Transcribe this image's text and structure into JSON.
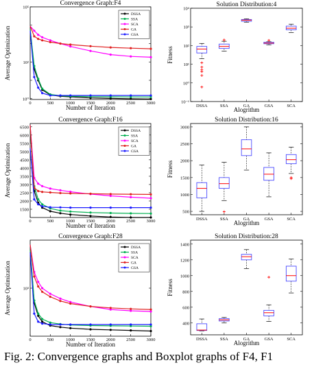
{
  "caption": "Fig. 2: Convergence graphs and Boxplot graphs of F4, F1",
  "legend_labels": [
    "DSSA",
    "SSA",
    "SCA",
    "GA",
    "GSA"
  ],
  "series_colors": {
    "DSSA": "#000000",
    "SSA": "#00b050",
    "SCA": "#ff00ff",
    "GA": "#e02020",
    "GSA": "#1a1aff"
  },
  "box_color": "#4a4aff",
  "median_color": "#ff0000",
  "outlier_color": "#ff0000",
  "chart_data": [
    {
      "type": "line",
      "title": "Convergence Graph:F4",
      "xlabel": "Number of Iteration",
      "ylabel": "Average Optimization",
      "yscale": "log",
      "xlim": [
        0,
        3000
      ],
      "ylim": [
        0.9,
        100000
      ],
      "x_ticks": [
        0,
        500,
        1000,
        1500,
        2000,
        2500,
        3000
      ],
      "y_ticks": [
        1,
        10,
        100,
        1000,
        10000,
        100000
      ],
      "y_tick_labels": [
        "10⁰",
        "",
        "10²",
        "",
        "",
        "10⁵"
      ],
      "x": [
        0,
        100,
        200,
        300,
        500,
        750,
        1000,
        1500,
        2000,
        2500,
        3000
      ],
      "series": [
        {
          "name": "DSSA",
          "values": [
            6000,
            40,
            10,
            3,
            1.6,
            1.35,
            1.25,
            1.1,
            1.03,
            0.98,
            0.95
          ]
        },
        {
          "name": "SSA",
          "values": [
            6000,
            60,
            12,
            3.5,
            1.7,
            1.45,
            1.35,
            1.3,
            1.27,
            1.25,
            1.24
          ]
        },
        {
          "name": "SCA",
          "values": [
            9000,
            5000,
            3000,
            2200,
            1500,
            1000,
            700,
            400,
            250,
            200,
            180
          ]
        },
        {
          "name": "GA",
          "values": [
            9000,
            2500,
            1800,
            1500,
            1200,
            1000,
            880,
            720,
            620,
            560,
            520
          ]
        },
        {
          "name": "GSA",
          "values": [
            5000,
            15,
            4,
            2,
            1.5,
            1.5,
            1.5,
            1.5,
            1.5,
            1.5,
            1.5
          ]
        }
      ]
    },
    {
      "type": "box",
      "title": "Solution Distribution:4",
      "xlabel": "Alogrithm",
      "ylabel": "Fitness",
      "yscale": "log",
      "ylim": [
        0.1,
        10000
      ],
      "y_ticks": [
        0.1,
        1,
        10,
        100,
        1000,
        10000
      ],
      "y_tick_labels": [
        "10⁻¹",
        "10⁰",
        "10¹",
        "10²",
        "10³",
        "10⁴"
      ],
      "categories": [
        "DSSA",
        "SSA",
        "GA",
        "GSA",
        "SCA"
      ],
      "boxes": [
        {
          "whisker_low": 20,
          "q1": 40,
          "median": 65,
          "q3": 90,
          "whisker_high": 130,
          "outliers": [
            12,
            7,
            5,
            4,
            2.5,
            0.6
          ]
        },
        {
          "whisker_low": 50,
          "q1": 70,
          "median": 90,
          "q3": 120,
          "whisker_high": 170,
          "outliers": [
            200
          ]
        },
        {
          "whisker_low": 1800,
          "q1": 2000,
          "median": 2300,
          "q3": 2500,
          "whisker_high": 2700,
          "outliers": []
        },
        {
          "whisker_low": 110,
          "q1": 125,
          "median": 135,
          "q3": 150,
          "whisker_high": 160,
          "outliers": [
            190
          ]
        },
        {
          "whisker_low": 500,
          "q1": 700,
          "median": 850,
          "q3": 1100,
          "whisker_high": 1400,
          "outliers": []
        }
      ]
    },
    {
      "type": "line",
      "title": "Convergence Graph:F16",
      "xlabel": "Number of Iteration",
      "ylabel": "Average Optimization",
      "xlim": [
        0,
        3000
      ],
      "ylim": [
        1000,
        6700
      ],
      "x_ticks": [
        0,
        500,
        1000,
        1500,
        2000,
        2500,
        3000
      ],
      "y_ticks": [
        1500,
        2000,
        2500,
        3000,
        3500,
        4000,
        4500,
        5000,
        5500,
        6000,
        6500
      ],
      "x": [
        0,
        100,
        200,
        300,
        500,
        750,
        1000,
        1500,
        2000,
        2500,
        3000
      ],
      "series": [
        {
          "name": "DSSA",
          "values": [
            6500,
            2600,
            1900,
            1600,
            1380,
            1260,
            1180,
            1090,
            1030,
            1000,
            980
          ]
        },
        {
          "name": "SSA",
          "values": [
            6500,
            2900,
            2100,
            1800,
            1550,
            1420,
            1360,
            1300,
            1270,
            1250,
            1240
          ]
        },
        {
          "name": "SCA",
          "values": [
            6600,
            3400,
            3050,
            2900,
            2750,
            2650,
            2560,
            2420,
            2310,
            2230,
            2170
          ]
        },
        {
          "name": "GA",
          "values": [
            6600,
            2800,
            2600,
            2550,
            2520,
            2480,
            2460,
            2440,
            2420,
            2410,
            2400
          ]
        },
        {
          "name": "GSA",
          "values": [
            5200,
            2100,
            1800,
            1680,
            1620,
            1610,
            1600,
            1600,
            1600,
            1600,
            1600
          ]
        }
      ]
    },
    {
      "type": "box",
      "title": "Solution Distribution:16",
      "xlabel": "Alogrithm",
      "ylabel": "Fitness",
      "ylim": [
        400,
        3100
      ],
      "y_ticks": [
        500,
        1000,
        1500,
        2000,
        2500,
        3000
      ],
      "categories": [
        "DSSA",
        "SSA",
        "GA",
        "GSA",
        "SCA"
      ],
      "boxes": [
        {
          "whisker_low": 500,
          "q1": 900,
          "median": 1180,
          "q3": 1350,
          "whisker_high": 1870,
          "outliers": []
        },
        {
          "whisker_low": 820,
          "q1": 1180,
          "median": 1320,
          "q3": 1500,
          "whisker_high": 1950,
          "outliers": [
            490
          ]
        },
        {
          "whisker_low": 1720,
          "q1": 2150,
          "median": 2350,
          "q3": 2620,
          "whisker_high": 3000,
          "outliers": []
        },
        {
          "whisker_low": 930,
          "q1": 1420,
          "median": 1600,
          "q3": 1800,
          "whisker_high": 2230,
          "outliers": []
        },
        {
          "whisker_low": 1620,
          "q1": 1910,
          "median": 2030,
          "q3": 2180,
          "whisker_high": 2400,
          "outliers": [
            1470,
            1500
          ]
        }
      ]
    },
    {
      "type": "line",
      "title": "Convergence Graph:F28",
      "xlabel": "Number of Iteration",
      "ylabel": "Average Optimization",
      "yscale": "log",
      "xlim": [
        0,
        3000
      ],
      "ylim": [
        250,
        4000
      ],
      "x_ticks": [
        0,
        500,
        1000,
        1500,
        2000,
        2500,
        3000
      ],
      "y_ticks": [
        1000
      ],
      "y_tick_labels": [
        "10³"
      ],
      "x": [
        0,
        100,
        200,
        300,
        500,
        750,
        1000,
        1500,
        2000,
        2500,
        3000
      ],
      "series": [
        {
          "name": "DSSA",
          "values": [
            3000,
            650,
            450,
            380,
            340,
            325,
            315,
            305,
            300,
            295,
            290
          ]
        },
        {
          "name": "SSA",
          "values": [
            3000,
            700,
            480,
            410,
            370,
            355,
            345,
            340,
            337,
            335,
            333
          ]
        },
        {
          "name": "SCA",
          "values": [
            3500,
            1600,
            1200,
            1000,
            850,
            740,
            670,
            590,
            540,
            520,
            510
          ]
        },
        {
          "name": "GA",
          "values": [
            3500,
            1400,
            1050,
            900,
            780,
            690,
            640,
            590,
            565,
            550,
            540
          ]
        },
        {
          "name": "GSA",
          "values": [
            2800,
            480,
            380,
            360,
            350,
            350,
            350,
            350,
            350,
            350,
            350
          ]
        }
      ]
    },
    {
      "type": "box",
      "title": "Solution Distribution:28",
      "xlabel": "Alogrithm",
      "ylabel": "Fitness",
      "ylim": [
        250,
        1450
      ],
      "y_ticks": [
        400,
        600,
        800,
        1000,
        1200,
        1400
      ],
      "categories": [
        "DSSA",
        "SSA",
        "GA",
        "GSA",
        "SCA"
      ],
      "boxes": [
        {
          "whisker_low": 300,
          "q1": 305,
          "median": 310,
          "q3": 390,
          "whisker_high": 450,
          "outliers": []
        },
        {
          "whisker_low": 400,
          "q1": 425,
          "median": 440,
          "q3": 455,
          "whisker_high": 470,
          "outliers": []
        },
        {
          "whisker_low": 1090,
          "q1": 1200,
          "median": 1240,
          "q3": 1270,
          "whisker_high": 1330,
          "outliers": []
        },
        {
          "whisker_low": 420,
          "q1": 490,
          "median": 530,
          "q3": 560,
          "whisker_high": 630,
          "outliers": [
            980
          ]
        },
        {
          "whisker_low": 780,
          "q1": 930,
          "median": 1000,
          "q3": 1120,
          "whisker_high": 1210,
          "outliers": []
        }
      ]
    }
  ]
}
